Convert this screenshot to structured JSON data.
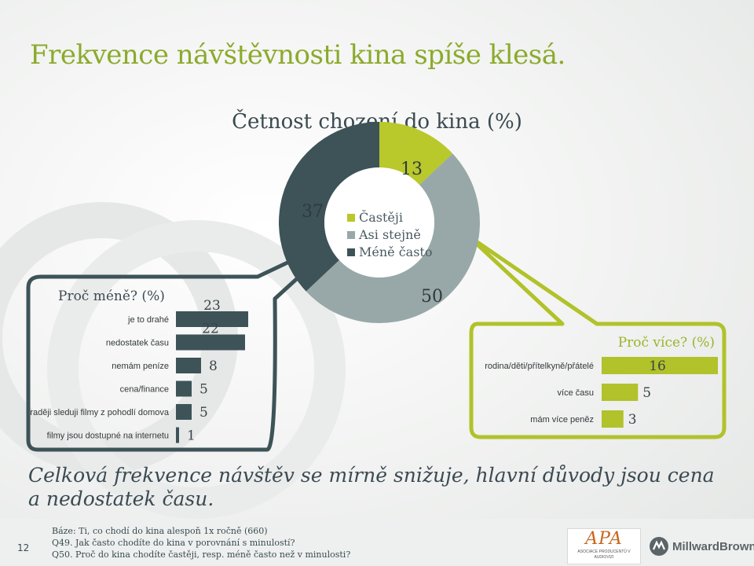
{
  "slide": {
    "title": "Frekvence návštěvnosti kina spíše klesá.",
    "conclusion": "Celková frekvence návštěv se mírně snižuje, hlavní důvody jsou cena a nedostatek času.",
    "page_number": "12"
  },
  "colors": {
    "title_green": "#8caa2c",
    "more": "#b9c82a",
    "same": "#98a8a8",
    "less": "#3d5358",
    "dark_bar": "#3d5358",
    "green_bar": "#b1c22a"
  },
  "chart_data": [
    {
      "type": "pie",
      "title": "Četnost chození do kina (%)",
      "labels": [
        "Častěji",
        "Asi stejně",
        "Méně často"
      ],
      "values": [
        13,
        50,
        37
      ],
      "value_labels": [
        "13",
        "50",
        "37"
      ]
    },
    {
      "type": "bar",
      "orientation": "horizontal",
      "title": "Proč méně? (%)",
      "categories": [
        "je to drahé",
        "nedostatek času",
        "nemám peníze",
        "cena/finance",
        "raději sleduji filmy z pohodlí domova",
        "filmy jsou dostupné na internetu"
      ],
      "values": [
        23,
        22,
        8,
        5,
        5,
        1
      ],
      "value_labels": [
        "23",
        "22",
        "8",
        "5",
        "5",
        "1"
      ],
      "xlim": [
        0,
        23
      ]
    },
    {
      "type": "bar",
      "orientation": "horizontal",
      "title": "Proč více? (%)",
      "categories": [
        "rodina/děti/přítelkyně/přátelé",
        "více času",
        "mám více peněz"
      ],
      "values": [
        16,
        5,
        3
      ],
      "value_labels": [
        "16",
        "5",
        "3"
      ],
      "xlim": [
        0,
        16
      ]
    }
  ],
  "notes": [
    "Báze: Ti, co chodí do kina alespoň 1x ročně (660)",
    "Q49. Jak často chodíte do kina v porovnání s minulostí?",
    "Q50. Proč do kina chodíte častěji, resp. méně často než v minulosti?"
  ],
  "logos": {
    "apa": "APA",
    "apa_sub": "ASOCIACE PRODUCENTŮ V AUDIOVIZI",
    "millward": "MillwardBrown"
  }
}
